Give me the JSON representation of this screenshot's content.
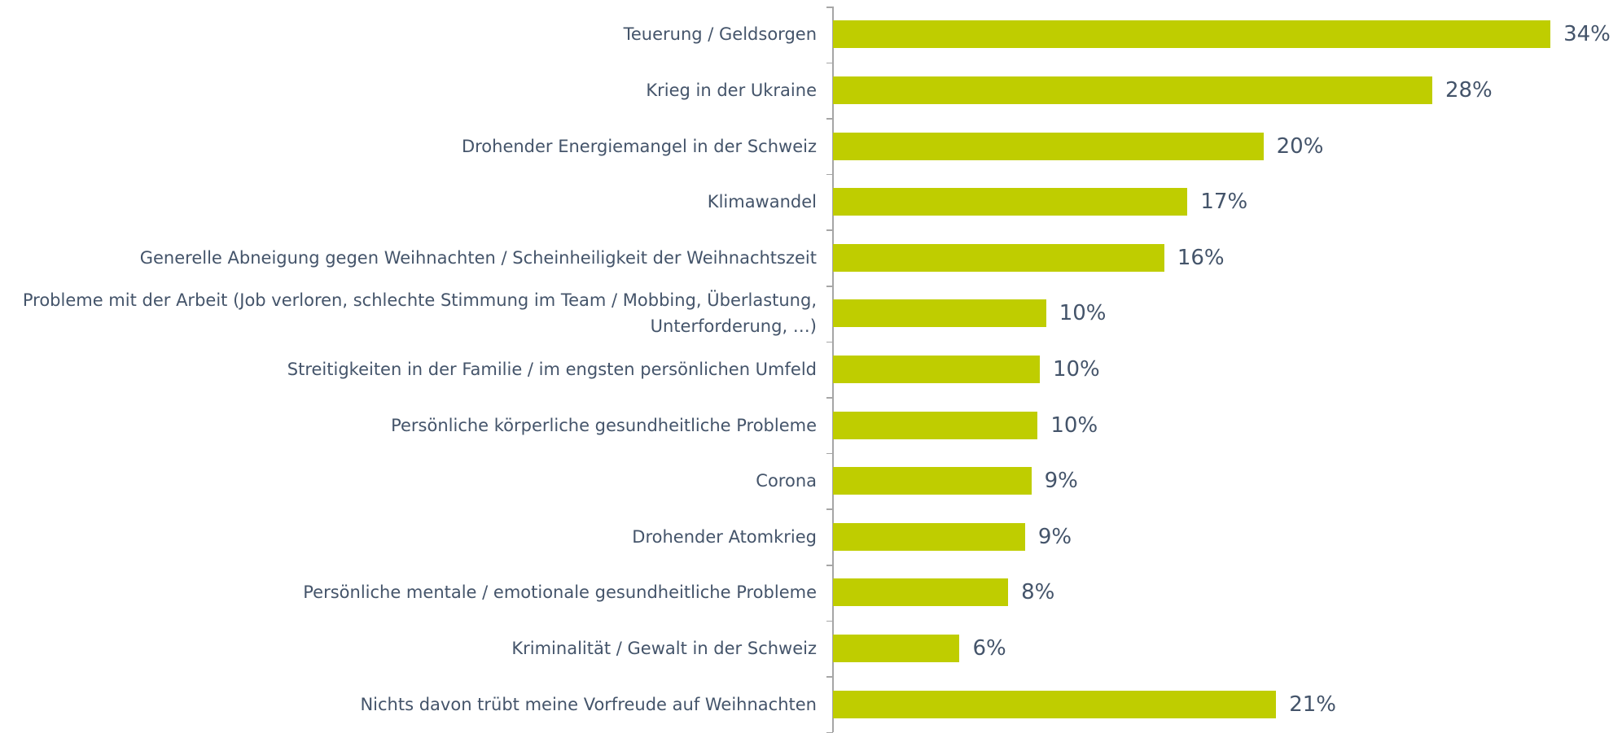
{
  "chart_data": {
    "type": "barh",
    "categories": [
      "Teuerung / Geldsorgen",
      "Krieg in der Ukraine",
      "Drohender Energiemangel in der Schweiz",
      "Klimawandel",
      "Generelle Abneigung gegen Weihnachten / Scheinheiligkeit der Weihnachtszeit",
      "Probleme mit der Arbeit (Job verloren, schlechte Stimmung im Team / Mobbing, Überlastung,\nUnterforderung, …)",
      "Streitigkeiten in der Familie / im engsten persönlichen Umfeld",
      "Persönliche körperliche gesundheitliche Probleme",
      "Corona",
      "Drohender Atomkrieg",
      "Persönliche mentale / emotionale gesundheitliche Probleme",
      "Kriminalität / Gewalt in der Schweiz",
      "Nichts davon trübt meine Vorfreude auf Weihnachten"
    ],
    "values": [
      34.0,
      28.4,
      20.4,
      16.8,
      15.7,
      10.1,
      9.8,
      9.7,
      9.4,
      9.1,
      8.3,
      6.0,
      21.0
    ],
    "value_labels": [
      "34%",
      "28%",
      "20%",
      "17%",
      "16%",
      "10%",
      "10%",
      "10%",
      "9%",
      "9%",
      "8%",
      "6%",
      "21%"
    ],
    "color": "#bfcd00",
    "xlim": [
      0,
      35
    ]
  }
}
